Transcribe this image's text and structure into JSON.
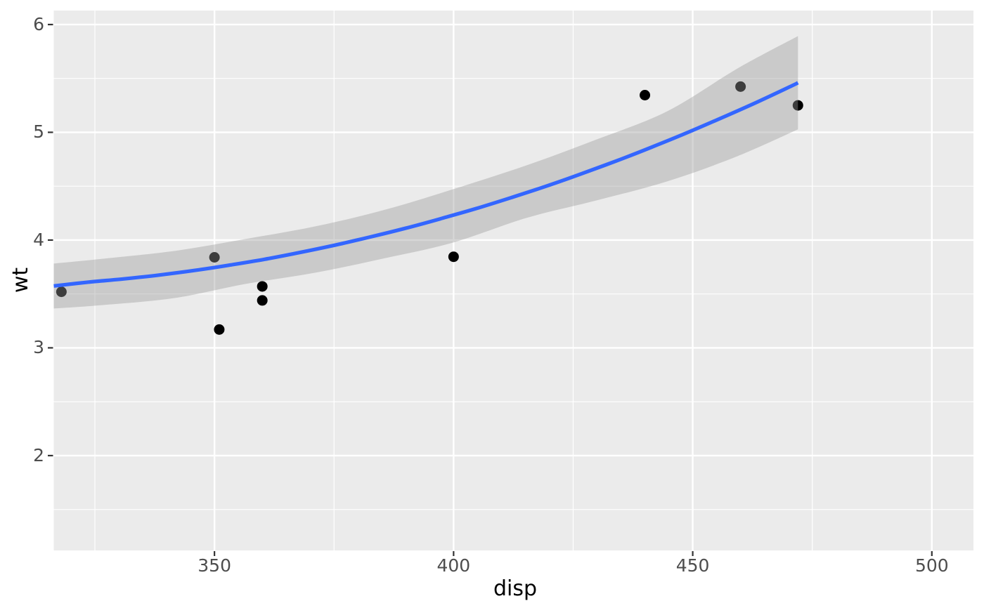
{
  "figure": {
    "background": "#FFFFFF"
  },
  "chart_data": {
    "type": "scatter",
    "title": "",
    "xlabel": "disp",
    "ylabel": "wt",
    "legend": "none",
    "grid": "major+minor, white on grey panel",
    "x_domain": [
      316.4,
      508.7
    ],
    "y_domain": [
      1.12,
      6.13
    ],
    "x_ticks": {
      "major": [
        350,
        400,
        450,
        500
      ],
      "labels": [
        "350",
        "400",
        "450",
        "500"
      ],
      "minor": [
        325,
        375,
        425,
        475
      ]
    },
    "y_ticks": {
      "major": [
        2,
        3,
        4,
        5,
        6
      ],
      "labels": [
        "2",
        "3",
        "4",
        "5",
        "6"
      ],
      "minor": [
        1.5,
        2.5,
        3.5,
        4.5,
        5.5
      ]
    },
    "points": [
      {
        "disp": 318,
        "wt": 3.52
      },
      {
        "disp": 350,
        "wt": 3.84
      },
      {
        "disp": 351,
        "wt": 3.17
      },
      {
        "disp": 360,
        "wt": 3.44
      },
      {
        "disp": 360,
        "wt": 3.57
      },
      {
        "disp": 400,
        "wt": 3.845
      },
      {
        "disp": 440,
        "wt": 5.345
      },
      {
        "disp": 460,
        "wt": 5.424
      },
      {
        "disp": 472,
        "wt": 5.25
      }
    ],
    "smooth": {
      "method": "loess",
      "line": [
        [
          316.4,
          3.574
        ],
        [
          323.7,
          3.61
        ],
        [
          331.1,
          3.64
        ],
        [
          338.4,
          3.675
        ],
        [
          345.8,
          3.718
        ],
        [
          353.1,
          3.767
        ],
        [
          360.5,
          3.822
        ],
        [
          367.8,
          3.884
        ],
        [
          375.2,
          3.953
        ],
        [
          382.5,
          4.028
        ],
        [
          389.9,
          4.109
        ],
        [
          397.2,
          4.197
        ],
        [
          404.6,
          4.291
        ],
        [
          411.9,
          4.392
        ],
        [
          419.3,
          4.499
        ],
        [
          426.6,
          4.613
        ],
        [
          434.0,
          4.734
        ],
        [
          441.3,
          4.86
        ],
        [
          448.7,
          4.994
        ],
        [
          456.0,
          5.133
        ],
        [
          463.4,
          5.279
        ],
        [
          470.7,
          5.431
        ],
        [
          472.0,
          5.46
        ]
      ],
      "ribbon": [
        [
          316.4,
          3.365,
          3.782
        ],
        [
          327.1,
          3.398,
          3.828
        ],
        [
          341.8,
          3.463,
          3.9
        ],
        [
          356.5,
          3.593,
          4.01
        ],
        [
          371.2,
          3.698,
          4.128
        ],
        [
          385.9,
          3.834,
          4.284
        ],
        [
          400.0,
          3.978,
          4.473
        ],
        [
          415.3,
          4.206,
          4.694
        ],
        [
          430.0,
          4.369,
          4.935
        ],
        [
          444.7,
          4.545,
          5.196
        ],
        [
          459.4,
          4.779,
          5.593
        ],
        [
          472.0,
          5.027,
          5.893
        ]
      ]
    },
    "colors": {
      "panel_background": "#EBEBEB",
      "grid": "#FFFFFF",
      "point": "#000000",
      "smooth_line": "#3366FF",
      "ribbon": "rgba(153,153,153,0.4)",
      "tick_text": "#4D4D4D",
      "axis_title": "#000000",
      "tick_mark": "#333333"
    },
    "style": {
      "point_radius": 7.5,
      "line_width": 5.2,
      "major_grid_width": 2.4,
      "minor_grid_width": 1.2
    }
  }
}
